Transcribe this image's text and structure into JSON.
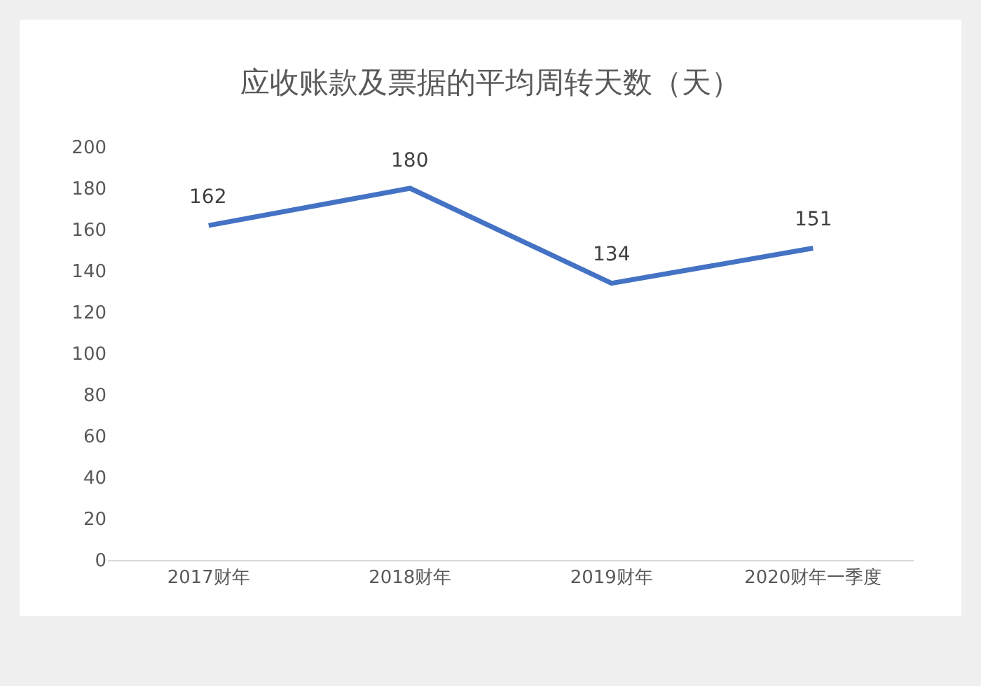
{
  "chart_data": {
    "type": "line",
    "title": "应收账款及票据的平均周转天数（天）",
    "categories": [
      "2017财年",
      "2018财年",
      "2019财年",
      "2020财年一季度"
    ],
    "series": [
      {
        "color": "#4472c4",
        "values": [
          162,
          180,
          134,
          151
        ]
      }
    ],
    "ylim": [
      0,
      200
    ],
    "yticks": [
      0,
      20,
      40,
      60,
      80,
      100,
      120,
      140,
      160,
      180,
      200
    ],
    "data_labels": true
  }
}
